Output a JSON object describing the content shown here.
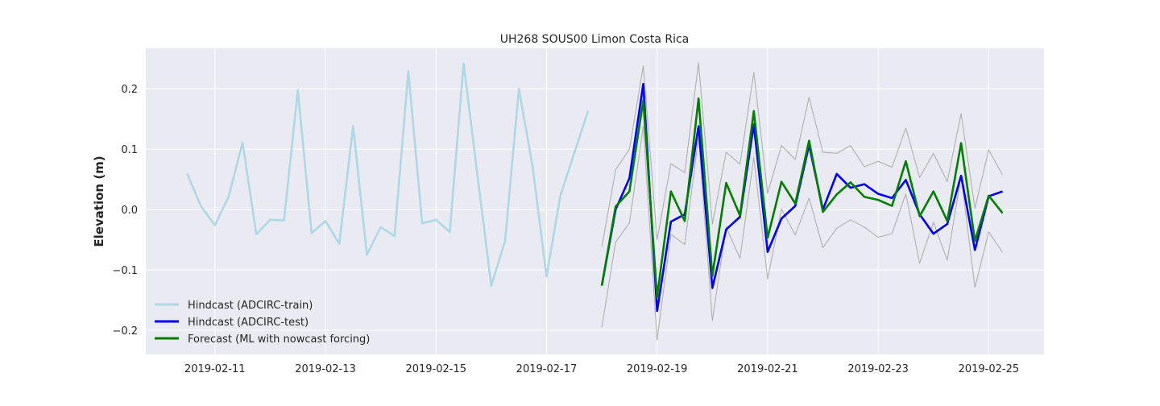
{
  "chart_data": {
    "type": "line",
    "title": "UH268 SOUS00 Limon Costa Rica",
    "xlabel": "",
    "ylabel": "Elevation (m)",
    "xlim": [
      "2019-02-09 18:00",
      "2019-02-26 00:00"
    ],
    "ylim": [
      -0.24,
      0.267
    ],
    "grid": true,
    "legend_position": "lower-left",
    "x_ticks": [
      "2019-02-11",
      "2019-02-13",
      "2019-02-15",
      "2019-02-17",
      "2019-02-19",
      "2019-02-21",
      "2019-02-23",
      "2019-02-25"
    ],
    "y_ticks": [
      "-0.2",
      "-0.1",
      "0.0",
      "0.1",
      "0.2"
    ],
    "y_tick_values": [
      -0.2,
      -0.1,
      0.0,
      0.1,
      0.2
    ],
    "series": [
      {
        "name": "Hindcast (ADCIRC-train)",
        "color": "#add8e6",
        "in_legend": true,
        "points": [
          [
            "2019-02-10 12:00",
            0.059
          ],
          [
            "2019-02-10 18:00",
            0.005
          ],
          [
            "2019-02-11 00:00",
            -0.026
          ],
          [
            "2019-02-11 06:00",
            0.022
          ],
          [
            "2019-02-11 12:00",
            0.111
          ],
          [
            "2019-02-11 18:00",
            -0.041
          ],
          [
            "2019-02-12 00:00",
            -0.017
          ],
          [
            "2019-02-12 06:00",
            -0.018
          ],
          [
            "2019-02-12 12:00",
            0.198
          ],
          [
            "2019-02-12 18:00",
            -0.039
          ],
          [
            "2019-02-13 00:00",
            -0.019
          ],
          [
            "2019-02-13 06:00",
            -0.057
          ],
          [
            "2019-02-13 12:00",
            0.138
          ],
          [
            "2019-02-13 18:00",
            -0.075
          ],
          [
            "2019-02-14 00:00",
            -0.029
          ],
          [
            "2019-02-14 06:00",
            -0.044
          ],
          [
            "2019-02-14 12:00",
            0.229
          ],
          [
            "2019-02-14 18:00",
            -0.023
          ],
          [
            "2019-02-15 00:00",
            -0.017
          ],
          [
            "2019-02-15 06:00",
            -0.037
          ],
          [
            "2019-02-15 12:00",
            0.242
          ],
          [
            "2019-02-15 18:00",
            0.057
          ],
          [
            "2019-02-16 00:00",
            -0.126
          ],
          [
            "2019-02-16 06:00",
            -0.052
          ],
          [
            "2019-02-16 12:00",
            0.2
          ],
          [
            "2019-02-16 18:00",
            0.07
          ],
          [
            "2019-02-17 00:00",
            -0.111
          ],
          [
            "2019-02-17 06:00",
            0.023
          ],
          [
            "2019-02-17 12:00",
            0.093
          ],
          [
            "2019-02-17 18:00",
            0.163
          ]
        ]
      },
      {
        "name": "Hindcast (ADCIRC-test)",
        "color": "#0000ff",
        "in_legend": true,
        "points": [
          [
            "2019-02-18 00:00",
            -0.126
          ],
          [
            "2019-02-18 06:00",
            0.0
          ],
          [
            "2019-02-18 12:00",
            0.052
          ],
          [
            "2019-02-18 18:00",
            0.208
          ],
          [
            "2019-02-19 00:00",
            -0.168
          ],
          [
            "2019-02-19 06:00",
            -0.02
          ],
          [
            "2019-02-19 12:00",
            -0.008
          ],
          [
            "2019-02-19 18:00",
            0.138
          ],
          [
            "2019-02-20 00:00",
            -0.13
          ],
          [
            "2019-02-20 06:00",
            -0.033
          ],
          [
            "2019-02-20 12:00",
            -0.012
          ],
          [
            "2019-02-20 18:00",
            0.141
          ],
          [
            "2019-02-21 00:00",
            -0.07
          ],
          [
            "2019-02-21 06:00",
            -0.015
          ],
          [
            "2019-02-21 12:00",
            0.006
          ],
          [
            "2019-02-21 18:00",
            0.107
          ],
          [
            "2019-02-22 00:00",
            0.0
          ],
          [
            "2019-02-22 06:00",
            0.059
          ],
          [
            "2019-02-22 12:00",
            0.036
          ],
          [
            "2019-02-22 18:00",
            0.042
          ],
          [
            "2019-02-23 00:00",
            0.026
          ],
          [
            "2019-02-23 06:00",
            0.019
          ],
          [
            "2019-02-23 12:00",
            0.049
          ],
          [
            "2019-02-23 18:00",
            -0.008
          ],
          [
            "2019-02-24 00:00",
            -0.04
          ],
          [
            "2019-02-24 06:00",
            -0.024
          ],
          [
            "2019-02-24 12:00",
            0.056
          ],
          [
            "2019-02-24 18:00",
            -0.067
          ],
          [
            "2019-02-25 00:00",
            0.022
          ],
          [
            "2019-02-25 06:00",
            0.03
          ]
        ]
      },
      {
        "name": "Forecast (ML with nowcast forcing)",
        "color": "#008000",
        "in_legend": true,
        "points": [
          [
            "2019-02-18 00:00",
            -0.126
          ],
          [
            "2019-02-18 06:00",
            0.005
          ],
          [
            "2019-02-18 12:00",
            0.03
          ],
          [
            "2019-02-18 18:00",
            0.181
          ],
          [
            "2019-02-19 00:00",
            -0.145
          ],
          [
            "2019-02-19 06:00",
            0.03
          ],
          [
            "2019-02-19 12:00",
            -0.019
          ],
          [
            "2019-02-19 18:00",
            0.184
          ],
          [
            "2019-02-20 00:00",
            -0.11
          ],
          [
            "2019-02-20 06:00",
            0.044
          ],
          [
            "2019-02-20 12:00",
            -0.01
          ],
          [
            "2019-02-20 18:00",
            0.163
          ],
          [
            "2019-02-21 00:00",
            -0.047
          ],
          [
            "2019-02-21 06:00",
            0.046
          ],
          [
            "2019-02-21 12:00",
            0.01
          ],
          [
            "2019-02-21 18:00",
            0.114
          ],
          [
            "2019-02-22 00:00",
            -0.004
          ],
          [
            "2019-02-22 06:00",
            0.025
          ],
          [
            "2019-02-22 12:00",
            0.045
          ],
          [
            "2019-02-22 18:00",
            0.021
          ],
          [
            "2019-02-23 00:00",
            0.016
          ],
          [
            "2019-02-23 06:00",
            0.006
          ],
          [
            "2019-02-23 12:00",
            0.08
          ],
          [
            "2019-02-23 18:00",
            -0.011
          ],
          [
            "2019-02-24 00:00",
            0.03
          ],
          [
            "2019-02-24 06:00",
            -0.019
          ],
          [
            "2019-02-24 12:00",
            0.11
          ],
          [
            "2019-02-24 18:00",
            -0.052
          ],
          [
            "2019-02-25 00:00",
            0.023
          ],
          [
            "2019-02-25 06:00",
            -0.006
          ]
        ]
      },
      {
        "name": "",
        "color": "#b4b4b4",
        "in_legend": false,
        "points": [
          [
            "2019-02-18 00:00",
            -0.062
          ],
          [
            "2019-02-18 06:00",
            0.066
          ],
          [
            "2019-02-18 12:00",
            0.1
          ],
          [
            "2019-02-18 18:00",
            0.238
          ],
          [
            "2019-02-19 00:00",
            -0.05
          ],
          [
            "2019-02-19 06:00",
            0.076
          ],
          [
            "2019-02-19 12:00",
            0.061
          ],
          [
            "2019-02-19 18:00",
            0.243
          ],
          [
            "2019-02-20 00:00",
            -0.024
          ],
          [
            "2019-02-20 06:00",
            0.095
          ],
          [
            "2019-02-20 12:00",
            0.075
          ],
          [
            "2019-02-20 18:00",
            0.227
          ],
          [
            "2019-02-21 00:00",
            0.027
          ],
          [
            "2019-02-21 06:00",
            0.106
          ],
          [
            "2019-02-21 12:00",
            0.083
          ],
          [
            "2019-02-21 18:00",
            0.186
          ],
          [
            "2019-02-22 00:00",
            0.095
          ],
          [
            "2019-02-22 06:00",
            0.093
          ],
          [
            "2019-02-22 12:00",
            0.106
          ],
          [
            "2019-02-22 18:00",
            0.071
          ],
          [
            "2019-02-23 00:00",
            0.08
          ],
          [
            "2019-02-23 06:00",
            0.07
          ],
          [
            "2019-02-23 12:00",
            0.135
          ],
          [
            "2019-02-23 18:00",
            0.053
          ],
          [
            "2019-02-24 00:00",
            0.093
          ],
          [
            "2019-02-24 06:00",
            0.046
          ],
          [
            "2019-02-24 12:00",
            0.159
          ],
          [
            "2019-02-24 18:00",
            0.002
          ],
          [
            "2019-02-25 00:00",
            0.099
          ],
          [
            "2019-02-25 06:00",
            0.057
          ]
        ]
      },
      {
        "name": "",
        "color": "#b4b4b4",
        "in_legend": false,
        "points": [
          [
            "2019-02-18 00:00",
            -0.195
          ],
          [
            "2019-02-18 06:00",
            -0.054
          ],
          [
            "2019-02-18 12:00",
            -0.022
          ],
          [
            "2019-02-18 18:00",
            0.138
          ],
          [
            "2019-02-19 00:00",
            -0.216
          ],
          [
            "2019-02-19 06:00",
            -0.041
          ],
          [
            "2019-02-19 12:00",
            -0.058
          ],
          [
            "2019-02-19 18:00",
            0.12
          ],
          [
            "2019-02-20 00:00",
            -0.184
          ],
          [
            "2019-02-20 06:00",
            -0.029
          ],
          [
            "2019-02-20 12:00",
            -0.081
          ],
          [
            "2019-02-20 18:00",
            0.087
          ],
          [
            "2019-02-21 00:00",
            -0.115
          ],
          [
            "2019-02-21 06:00",
            0.001
          ],
          [
            "2019-02-21 12:00",
            -0.042
          ],
          [
            "2019-02-21 18:00",
            0.019
          ],
          [
            "2019-02-22 00:00",
            -0.063
          ],
          [
            "2019-02-22 06:00",
            -0.031
          ],
          [
            "2019-02-22 12:00",
            -0.017
          ],
          [
            "2019-02-22 18:00",
            -0.029
          ],
          [
            "2019-02-23 00:00",
            -0.046
          ],
          [
            "2019-02-23 06:00",
            -0.04
          ],
          [
            "2019-02-23 12:00",
            0.026
          ],
          [
            "2019-02-23 18:00",
            -0.089
          ],
          [
            "2019-02-24 00:00",
            -0.021
          ],
          [
            "2019-02-24 06:00",
            -0.084
          ],
          [
            "2019-02-24 12:00",
            0.056
          ],
          [
            "2019-02-24 18:00",
            -0.129
          ],
          [
            "2019-02-25 00:00",
            -0.037
          ],
          [
            "2019-02-25 06:00",
            -0.071
          ]
        ]
      }
    ]
  }
}
